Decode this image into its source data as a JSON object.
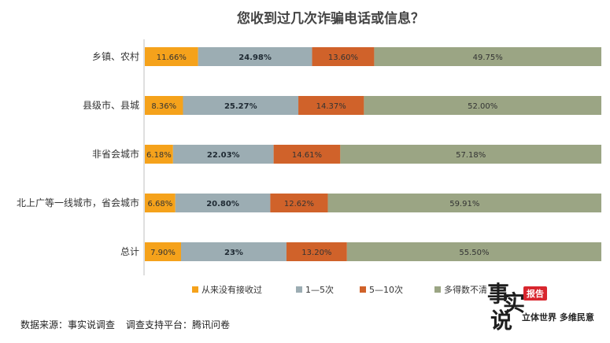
{
  "chart_data": {
    "type": "bar",
    "stacked": "100%",
    "orientation": "horizontal",
    "title": "您收到过几次诈骗电话或信息？",
    "categories": [
      "乡镇、农村",
      "县级市、县城",
      "非省会城市",
      "北上广等一线城市，省会城市",
      "总计"
    ],
    "series": [
      {
        "name": "从来没有接收过",
        "color": "#f5a21b",
        "values": [
          11.66,
          8.36,
          6.18,
          6.68,
          7.9
        ],
        "labels": [
          "11.66%",
          "8.36%",
          "6.18%",
          "6.68%",
          "7.90%"
        ]
      },
      {
        "name": "1—5次",
        "color": "#9cadb3",
        "values": [
          24.98,
          25.27,
          22.03,
          20.8,
          23
        ],
        "labels": [
          "24.98%",
          "25.27%",
          "22.03%",
          "20.80%",
          "23%"
        ]
      },
      {
        "name": "5—10次",
        "color": "#d0622a",
        "values": [
          13.6,
          14.37,
          14.61,
          12.62,
          13.2
        ],
        "labels": [
          "13.60%",
          "14.37%",
          "14.61%",
          "12.62%",
          "13.20%"
        ]
      },
      {
        "name": "多得数不清",
        "color": "#9ba584",
        "values": [
          49.75,
          52.0,
          57.18,
          59.91,
          55.5
        ],
        "labels": [
          "49.75%",
          "52.00%",
          "57.18%",
          "59.91%",
          "55.50%"
        ]
      }
    ],
    "legend": "bottom",
    "grid": false
  },
  "footer": {
    "source": "数据来源：事实说调查",
    "platform": "调查支持平台：腾讯问卷"
  },
  "logo": {
    "char1": "事",
    "char2": "实",
    "char3": "说",
    "badge": "报告",
    "tagline": "立体世界 多维民意"
  }
}
